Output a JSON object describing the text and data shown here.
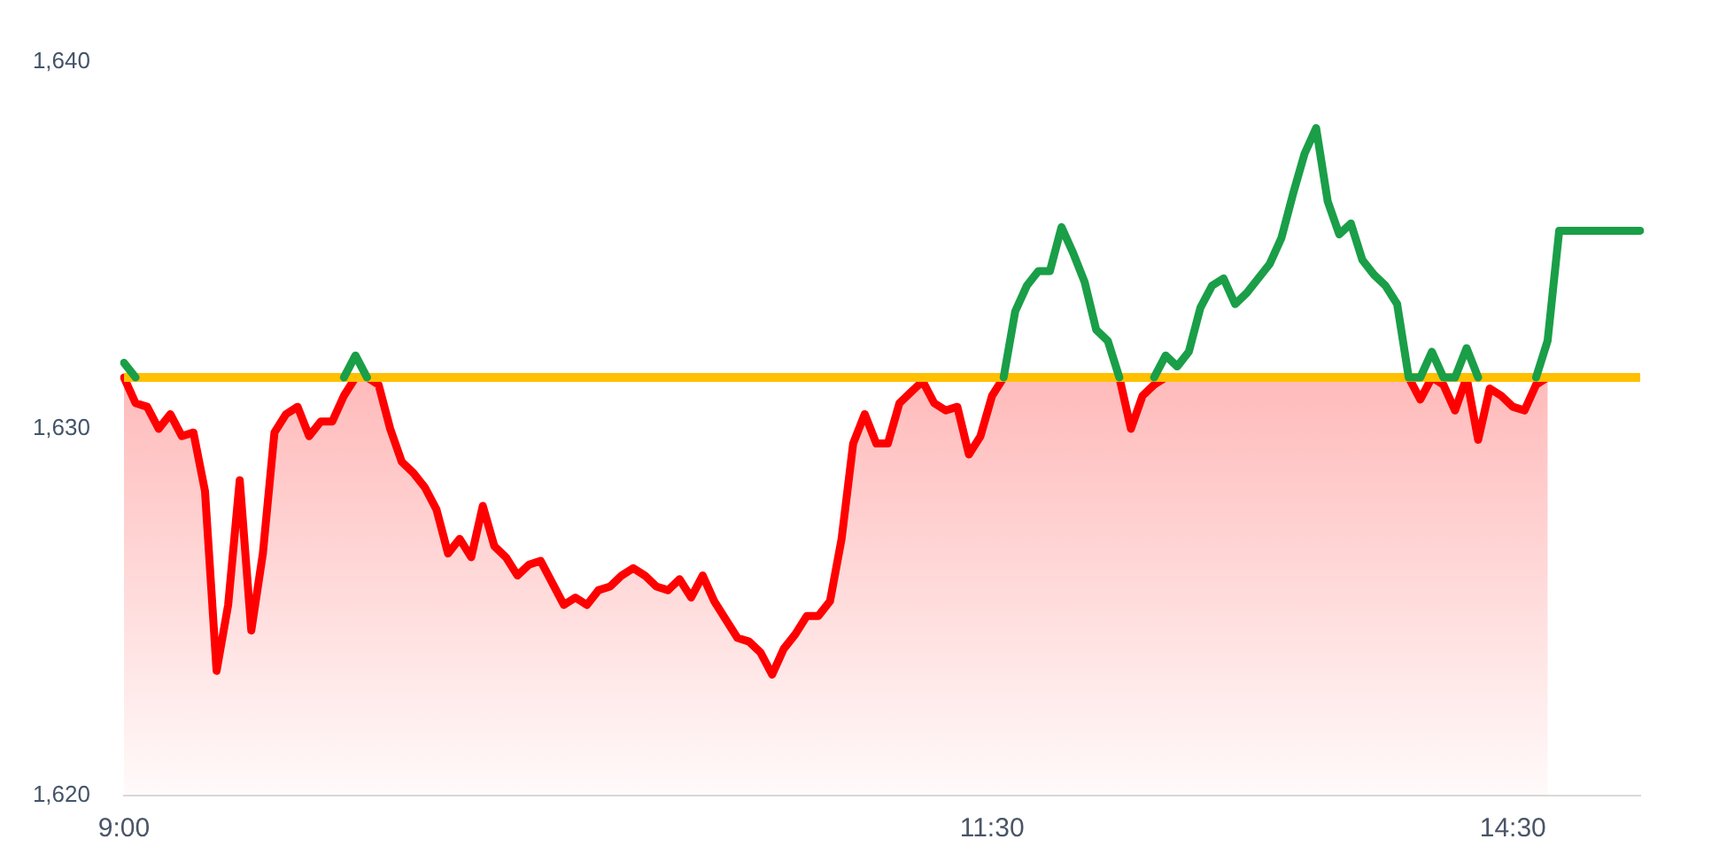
{
  "chart_data": {
    "type": "line",
    "categories": [
      "9:00",
      null,
      null,
      null,
      null,
      null,
      null,
      null,
      null,
      null,
      null,
      null,
      null,
      null,
      null,
      null,
      null,
      null,
      null,
      null,
      null,
      null,
      null,
      null,
      null,
      null,
      null,
      null,
      null,
      null,
      null,
      null,
      null,
      null,
      null,
      null,
      null,
      null,
      null,
      null,
      null,
      null,
      null,
      null,
      null,
      null,
      null,
      null,
      null,
      null,
      null,
      null,
      null,
      null,
      null,
      null,
      null,
      null,
      null,
      null,
      null,
      null,
      null,
      null,
      null,
      null,
      null,
      null,
      null,
      null,
      null,
      null,
      null,
      null,
      null,
      "11:30",
      null,
      null,
      null,
      null,
      null,
      null,
      null,
      null,
      null,
      null,
      null,
      null,
      null,
      null,
      null,
      null,
      null,
      null,
      null,
      null,
      null,
      null,
      null,
      null,
      null,
      null,
      null,
      null,
      null,
      null,
      null,
      null,
      null,
      null,
      null,
      null,
      null,
      null,
      null,
      null,
      null,
      null,
      null,
      null,
      "14:30",
      null,
      null,
      null,
      null,
      null,
      null,
      null,
      null,
      null,
      null,
      null
    ],
    "series": [
      {
        "color": "#1a9e48",
        "values": [
          1631.8,
          1631.4,
          null,
          null,
          null,
          null,
          null,
          null,
          null,
          null,
          null,
          null,
          null,
          null,
          null,
          null,
          null,
          null,
          null,
          1631.4,
          1632.0,
          1631.4,
          null,
          null,
          null,
          null,
          null,
          null,
          null,
          null,
          null,
          null,
          null,
          null,
          null,
          null,
          null,
          null,
          null,
          null,
          null,
          null,
          null,
          null,
          null,
          null,
          null,
          null,
          null,
          null,
          null,
          null,
          null,
          null,
          null,
          null,
          null,
          null,
          null,
          null,
          null,
          null,
          null,
          null,
          null,
          null,
          null,
          null,
          null,
          null,
          null,
          null,
          null,
          null,
          null,
          null,
          1631.4,
          1633.2,
          1633.9,
          1634.3,
          1634.3,
          1635.5,
          1634.8,
          1634.0,
          1632.7,
          1632.4,
          1631.4,
          null,
          null,
          1631.4,
          1632.0,
          1631.7,
          1632.1,
          1633.3,
          1633.9,
          1634.1,
          1633.4,
          1633.7,
          1634.1,
          1634.5,
          1635.2,
          1636.4,
          1637.5,
          1638.2,
          1636.2,
          1635.3,
          1635.6,
          1634.6,
          1634.2,
          1633.9,
          1633.4,
          1631.4,
          1631.4,
          1632.1,
          1631.4,
          1631.4,
          1632.2,
          1631.4,
          null,
          null,
          null,
          null,
          1631.4,
          1632.4,
          1635.4,
          1635.4,
          1635.4,
          1635.4,
          1635.4,
          1635.4,
          1635.4,
          1635.4
        ]
      },
      {
        "type": "area",
        "color": "#ff0000",
        "values": [
          1631.4,
          1630.7,
          1630.6,
          1630.0,
          1630.4,
          1629.8,
          1629.9,
          1628.3,
          1623.4,
          1625.2,
          1628.6,
          1624.5,
          1626.6,
          1629.9,
          1630.4,
          1630.6,
          1629.8,
          1630.2,
          1630.2,
          1630.9,
          1631.4,
          1631.4,
          1631.2,
          1630.0,
          1629.1,
          1628.8,
          1628.4,
          1627.8,
          1626.6,
          1627.0,
          1626.5,
          1627.9,
          1626.8,
          1626.5,
          1626.0,
          1626.3,
          1626.4,
          1625.8,
          1625.2,
          1625.4,
          1625.2,
          1625.6,
          1625.7,
          1626.0,
          1626.2,
          1626.0,
          1625.7,
          1625.6,
          1625.9,
          1625.4,
          1626.0,
          1625.3,
          1624.8,
          1624.3,
          1624.2,
          1623.9,
          1623.3,
          1624.0,
          1624.4,
          1624.9,
          1624.9,
          1625.3,
          1627.0,
          1629.6,
          1630.4,
          1629.6,
          1629.6,
          1630.7,
          1631.0,
          1631.3,
          1630.7,
          1630.5,
          1630.6,
          1629.3,
          1629.8,
          1630.9,
          1631.4,
          null,
          null,
          null,
          null,
          null,
          null,
          null,
          null,
          null,
          1631.4,
          1630.0,
          1630.9,
          1631.2,
          1631.4,
          null,
          null,
          null,
          null,
          null,
          null,
          null,
          null,
          null,
          null,
          null,
          null,
          null,
          null,
          null,
          null,
          null,
          null,
          null,
          null,
          1631.4,
          1630.8,
          1631.4,
          1631.2,
          1630.5,
          1631.4,
          1629.7,
          1631.1,
          1630.9,
          1630.6,
          1630.5,
          1631.2,
          1631.4,
          null,
          null,
          null,
          null,
          null,
          null,
          null,
          null
        ]
      }
    ],
    "ylim": [
      1620,
      1640
    ],
    "yticks": [
      {
        "value": 1620,
        "label": "1,620"
      },
      {
        "value": 1630,
        "label": "1,630"
      },
      {
        "value": 1640,
        "label": "1,640"
      }
    ],
    "ref_lines": [
      {
        "axis": "y",
        "value": 1631.4,
        "color": "#ffc000"
      }
    ]
  }
}
